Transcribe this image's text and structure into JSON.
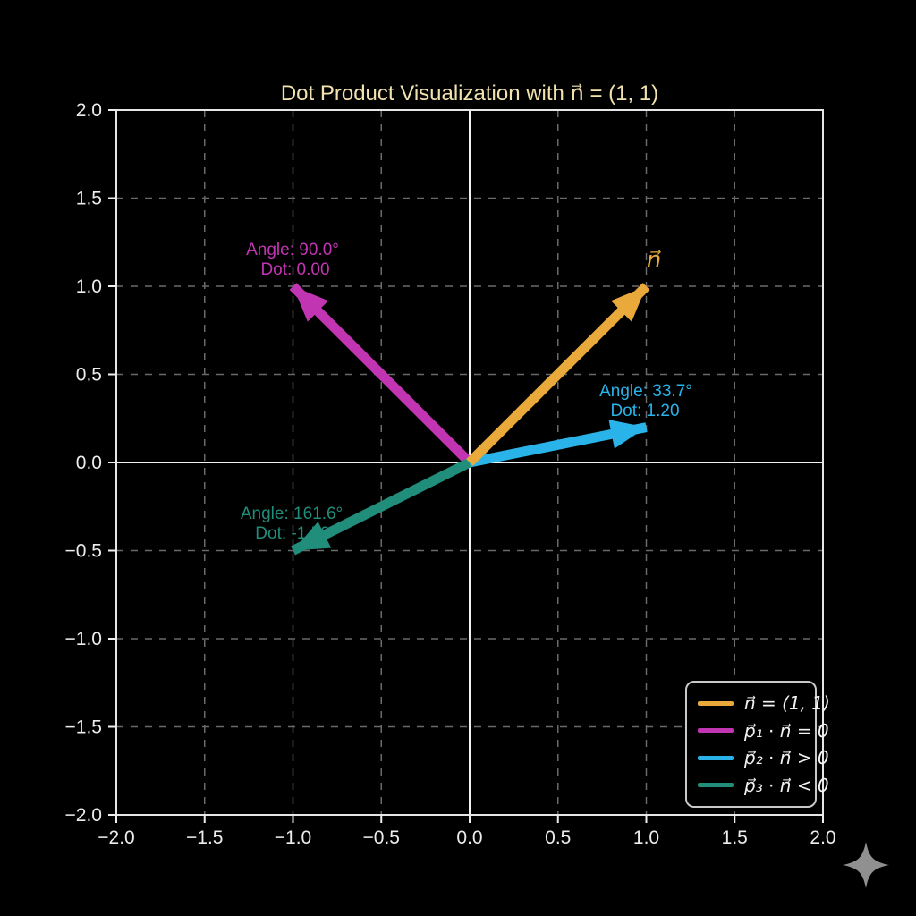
{
  "title": {
    "text": "Dot Product Visualization with n⃗ = (1, 1)",
    "color": "#F2E3AE"
  },
  "axes": {
    "x_tick_labels": [
      "−2.0",
      "−1.5",
      "−1.0",
      "−0.5",
      "0.0",
      "0.5",
      "1.0",
      "1.5",
      "2.0"
    ],
    "y_tick_labels": [
      "2.0",
      "1.5",
      "1.0",
      "0.5",
      "0.0",
      "−0.5",
      "−1.0",
      "−1.5",
      "−2.0"
    ]
  },
  "chart_data": {
    "type": "quiver",
    "title": "Dot Product Visualization with n⃗ = (1, 1)",
    "xlabel": "",
    "ylabel": "",
    "xlim": [
      -2.0,
      2.0
    ],
    "ylim": [
      -2.0,
      2.0
    ],
    "x_ticks": [
      -2.0,
      -1.5,
      -1.0,
      -0.5,
      0.0,
      0.5,
      1.0,
      1.5,
      2.0
    ],
    "y_ticks": [
      -2.0,
      -1.5,
      -1.0,
      -0.5,
      0.0,
      0.5,
      1.0,
      1.5,
      2.0
    ],
    "grid": "dashed gray, 0.5 spacing; solid white zero axes",
    "legend_position": "lower right",
    "reference_vector": "n = (1, 1)",
    "vectors": [
      {
        "name": "n",
        "x": 1.0,
        "y": 1.0,
        "color": "#E9A93B",
        "point_label": "n⃗",
        "legend_label": "n⃗ = (1, 1)"
      },
      {
        "name": "p1",
        "x": -1.0,
        "y": 1.0,
        "color": "#C235B2",
        "legend_label": "p⃗₁ ⋅ n⃗ = 0",
        "angle_deg": 90.0,
        "dot": 0.0,
        "annotation_line1": "Angle: 90.0°",
        "annotation_line2": "Dot: 0.00"
      },
      {
        "name": "p2",
        "x": 1.0,
        "y": 0.2,
        "color": "#2AB3E8",
        "legend_label": "p⃗₂ ⋅ n⃗ > 0",
        "angle_deg": 33.7,
        "dot": 1.2,
        "annotation_line1": "Angle: 33.7°",
        "annotation_line2": "Dot: 1.20"
      },
      {
        "name": "p3",
        "x": -1.0,
        "y": -0.5,
        "color": "#218D7B",
        "legend_label": "p⃗₃ ⋅ n⃗ < 0",
        "angle_deg": 161.6,
        "dot": -1.5,
        "annotation_line1": "Angle: 161.6°",
        "annotation_line2": "Dot: -1.50"
      }
    ]
  },
  "watermark": {
    "icon": "sparkle-icon",
    "color": "#909090"
  }
}
